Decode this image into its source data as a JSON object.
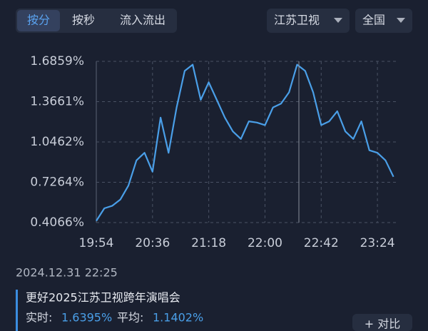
{
  "tabs": [
    "按分",
    "按秒",
    "流入流出"
  ],
  "filters": [
    "江苏卫视",
    "全国"
  ],
  "chart_data": {
    "type": "line",
    "categories": [
      "19:54",
      null,
      null,
      null,
      null,
      null,
      null,
      "20:36",
      null,
      null,
      null,
      null,
      null,
      null,
      "21:18",
      null,
      null,
      null,
      null,
      null,
      null,
      "22:00",
      null,
      null,
      null,
      null,
      null,
      null,
      "22:42",
      null,
      null,
      null,
      null,
      null,
      null,
      "23:24",
      null,
      null
    ],
    "values": [
      0.42,
      0.52,
      0.54,
      0.59,
      0.7,
      0.9,
      0.96,
      0.81,
      1.24,
      0.96,
      1.32,
      1.61,
      1.66,
      1.38,
      1.52,
      1.38,
      1.24,
      1.13,
      1.07,
      1.21,
      1.2,
      1.18,
      1.32,
      1.35,
      1.44,
      1.66,
      1.61,
      1.44,
      1.18,
      1.21,
      1.29,
      1.13,
      1.07,
      1.21,
      0.98,
      0.96,
      0.9,
      0.77
    ],
    "color": "#4a9fe8",
    "ylim": [
      0.4066,
      1.6859
    ],
    "yticks": [
      {
        "value": 0.4066,
        "label": "0.4066%"
      },
      {
        "value": 0.7264,
        "label": "0.7264%"
      },
      {
        "value": 1.0462,
        "label": "1.0462%"
      },
      {
        "value": 1.3661,
        "label": "1.3661%"
      },
      {
        "value": 1.6859,
        "label": "1.6859%"
      }
    ],
    "grid": true
  },
  "info": {
    "time": "2024.12.31 22:25",
    "program": "更好2025江苏卫视跨年演唱会",
    "realtime_label": "实时:",
    "realtime_value": "1.6395%",
    "average_label": "平均:",
    "average_value": "1.1402%",
    "compare_button": "+ 对比"
  }
}
